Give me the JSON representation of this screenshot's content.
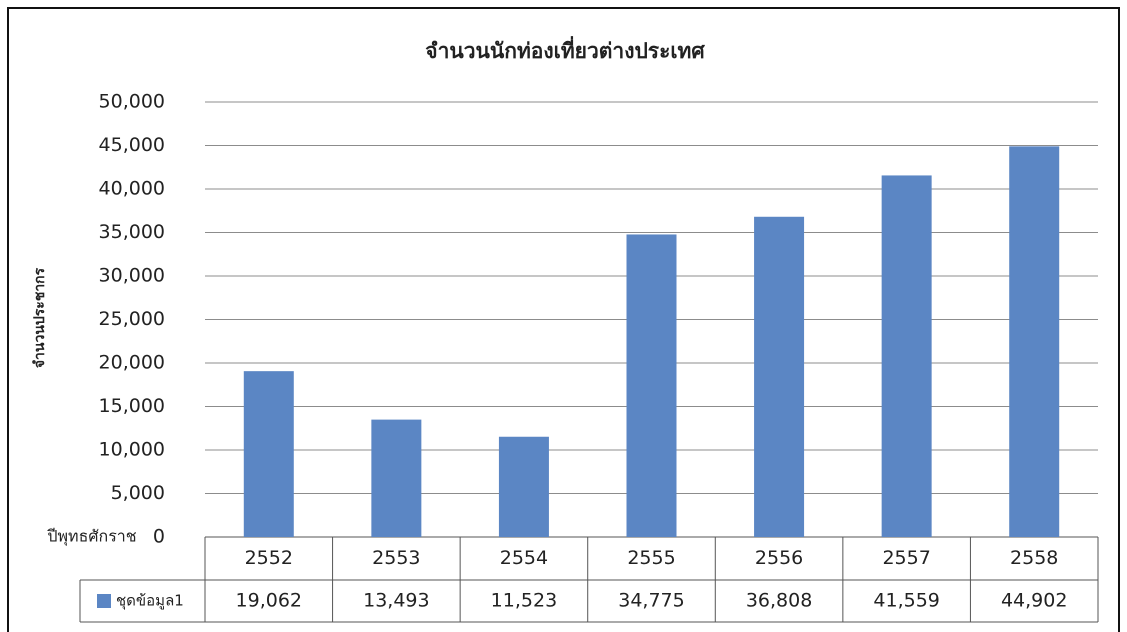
{
  "chart_data": {
    "type": "bar",
    "title": "จำนวนนักท่องเที่ยวต่างประเทศ",
    "y_label": "จำนวนประชากร",
    "x_label": "ปีพุทธศักราช",
    "categories": [
      "2552",
      "2553",
      "2554",
      "2555",
      "2556",
      "2557",
      "2558"
    ],
    "series": [
      {
        "name": "ชุดข้อมูล1",
        "color": "#5b86c4",
        "values": [
          19062,
          13493,
          11523,
          34775,
          36808,
          41559,
          44902
        ],
        "value_labels": [
          "19,062",
          "13,493",
          "11,523",
          "34,775",
          "36,808",
          "41,559",
          "44,902"
        ]
      }
    ],
    "ylim": [
      0,
      50000
    ],
    "yticks": [
      0,
      {
        "value": 5000,
        "label": "5,000"
      },
      {
        "value": 10000,
        "label": "10,000"
      },
      {
        "value": 15000,
        "label": "15,000"
      },
      {
        "value": 20000,
        "label": "20,000"
      },
      {
        "value": 25000,
        "label": "25,000"
      },
      {
        "value": 30000,
        "label": "30,000"
      },
      {
        "value": 35000,
        "label": "35,000"
      },
      {
        "value": 40000,
        "label": "40,000"
      },
      {
        "value": 45000,
        "label": "45,000"
      },
      {
        "value": 50000,
        "label": "50,000"
      }
    ],
    "grid": true
  }
}
